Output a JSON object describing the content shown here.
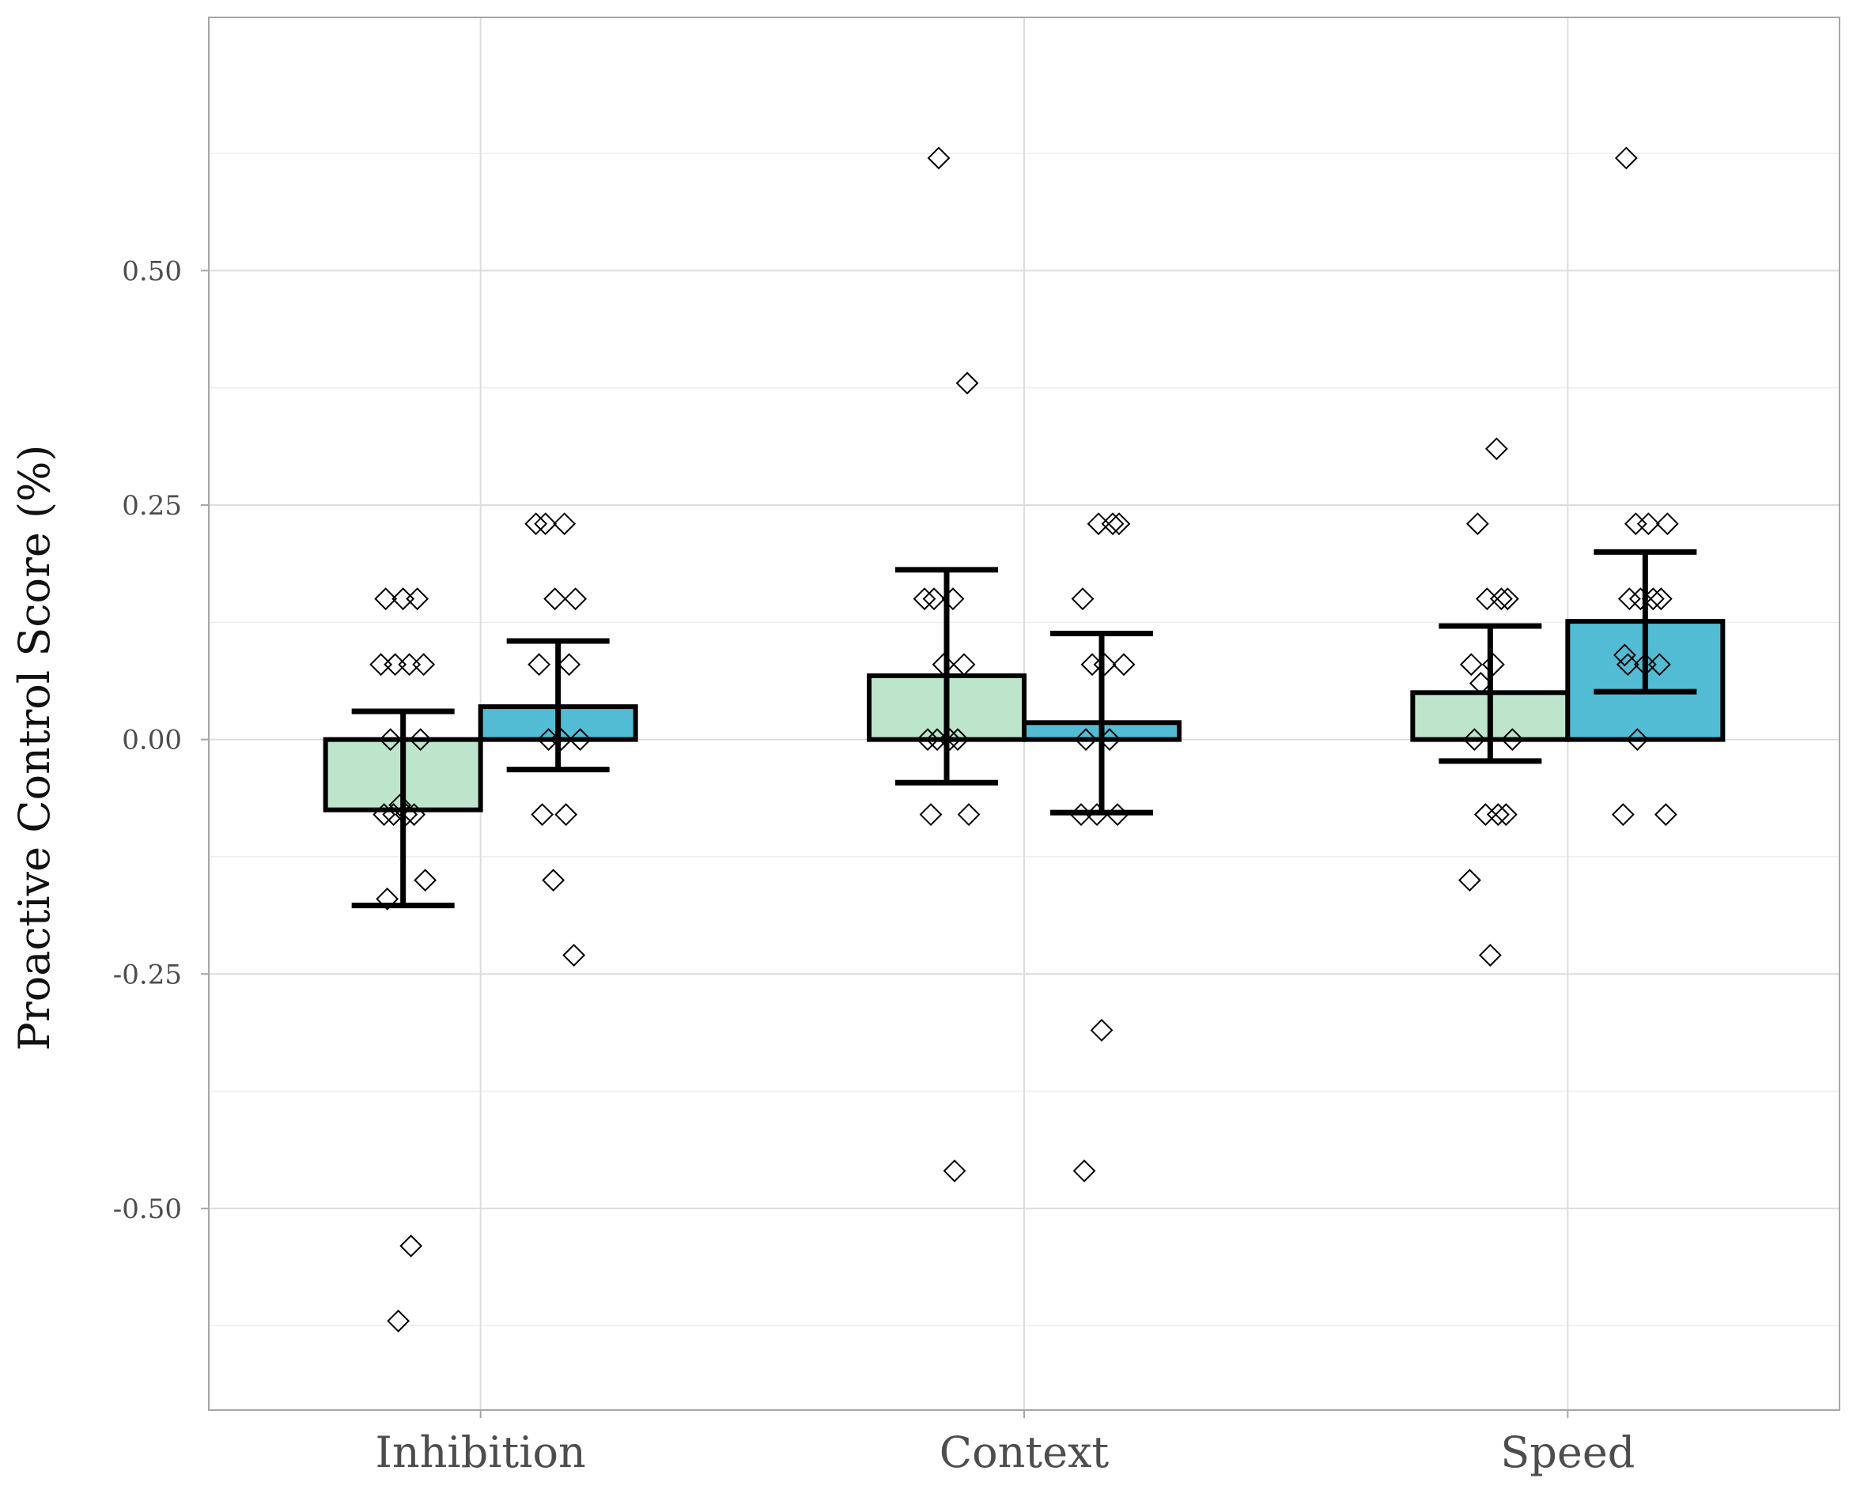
{
  "chart_data": {
    "type": "bar",
    "ylabel": "Proactive Control Score (%)",
    "xlabel": "",
    "title": "",
    "ylim": [
      -0.715,
      0.77
    ],
    "y_ticks": [
      -0.5,
      -0.25,
      0.0,
      0.25,
      0.5
    ],
    "y_tick_labels": [
      "-0.50",
      "-0.25",
      "0.00",
      "0.25",
      "0.50"
    ],
    "grid": true,
    "legend": "none",
    "categories": [
      "Inhibition",
      "Context",
      "Speed"
    ],
    "series": [
      {
        "color": "#bde5cb",
        "values": [
          -0.075,
          0.068,
          0.05
        ],
        "error_low": [
          -0.177,
          -0.046,
          -0.023
        ],
        "error_high": [
          0.03,
          0.181,
          0.121
        ],
        "points": [
          [
            0.15,
            0.15,
            0.15,
            0.08,
            0.08,
            0.08,
            0.08,
            0.0,
            0.0,
            -0.07,
            -0.08,
            -0.08,
            -0.08,
            -0.08,
            -0.15,
            -0.17,
            -0.54,
            -0.62
          ],
          [
            0.62,
            0.38,
            0.15,
            0.15,
            0.15,
            0.08,
            0.08,
            0.0,
            0.0,
            0.0,
            0.0,
            -0.08,
            -0.08,
            -0.46
          ],
          [
            0.31,
            0.23,
            0.15,
            0.15,
            0.15,
            0.08,
            0.08,
            0.06,
            0.0,
            0.0,
            -0.08,
            -0.08,
            -0.08,
            -0.15,
            -0.23
          ]
        ]
      },
      {
        "color": "#53bcd5",
        "values": [
          0.035,
          0.018,
          0.126
        ],
        "error_low": [
          -0.032,
          -0.078,
          0.051
        ],
        "error_high": [
          0.105,
          0.113,
          0.2
        ],
        "points": [
          [
            0.23,
            0.23,
            0.23,
            0.15,
            0.15,
            0.08,
            0.08,
            0.0,
            0.0,
            0.0,
            -0.08,
            -0.08,
            -0.15,
            -0.23
          ],
          [
            0.23,
            0.23,
            0.23,
            0.15,
            0.08,
            0.08,
            0.08,
            0.0,
            0.0,
            -0.08,
            -0.08,
            -0.08,
            -0.31,
            -0.46
          ],
          [
            0.62,
            0.23,
            0.23,
            0.23,
            0.15,
            0.15,
            0.15,
            0.15,
            0.09,
            0.08,
            0.08,
            0.08,
            0.0,
            -0.08,
            -0.08
          ]
        ]
      }
    ]
  }
}
